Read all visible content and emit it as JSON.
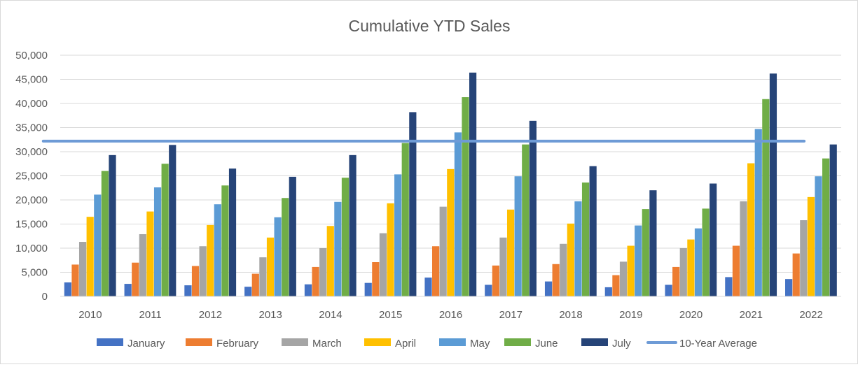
{
  "chart_data": {
    "type": "bar",
    "title": "Cumulative YTD Sales",
    "xlabel": "",
    "ylabel": "",
    "ylim": [
      0,
      50000
    ],
    "yticks": [
      0,
      5000,
      10000,
      15000,
      20000,
      25000,
      30000,
      35000,
      40000,
      45000,
      50000
    ],
    "ytick_labels": [
      "0",
      "5,000",
      "10,000",
      "15,000",
      "20,000",
      "25,000",
      "30,000",
      "35,000",
      "40,000",
      "45,000",
      "50,000"
    ],
    "grid": true,
    "legend_position": "bottom",
    "categories": [
      "2010",
      "2011",
      "2012",
      "2013",
      "2014",
      "2015",
      "2016",
      "2017",
      "2018",
      "2019",
      "2020",
      "2021",
      "2022"
    ],
    "series": [
      {
        "name": "January",
        "color": "#4472c4",
        "values": [
          2900,
          2600,
          2300,
          2000,
          2500,
          2800,
          3900,
          2400,
          3100,
          1900,
          2400,
          4000,
          3600
        ]
      },
      {
        "name": "February",
        "color": "#ed7d31",
        "values": [
          6600,
          7000,
          6300,
          4700,
          6100,
          7100,
          10400,
          6400,
          6700,
          4400,
          6100,
          10500,
          8900
        ]
      },
      {
        "name": "March",
        "color": "#a5a5a5",
        "values": [
          11300,
          12900,
          10400,
          8100,
          10000,
          13100,
          18600,
          12200,
          10900,
          7200,
          10000,
          19700,
          15800
        ]
      },
      {
        "name": "April",
        "color": "#ffc000",
        "values": [
          16500,
          17600,
          14800,
          12200,
          14600,
          19300,
          26400,
          18000,
          15100,
          10500,
          11800,
          27600,
          20600
        ]
      },
      {
        "name": "May",
        "color": "#5b9bd5",
        "values": [
          21100,
          22600,
          19100,
          16400,
          19600,
          25300,
          34000,
          24900,
          19700,
          14700,
          14100,
          34700,
          24900
        ]
      },
      {
        "name": "June",
        "color": "#70ad47",
        "values": [
          26000,
          27500,
          23000,
          20400,
          24600,
          31800,
          41300,
          31500,
          23600,
          18100,
          18200,
          40900,
          28600
        ]
      },
      {
        "name": "July",
        "color": "#264478",
        "values": [
          29300,
          31400,
          26500,
          24800,
          29300,
          38200,
          46400,
          36400,
          27000,
          22000,
          23400,
          46200,
          31500
        ]
      }
    ],
    "reference_line": {
      "name": "10-Year Average",
      "color": "#6e9bd6",
      "value": 32200
    }
  }
}
